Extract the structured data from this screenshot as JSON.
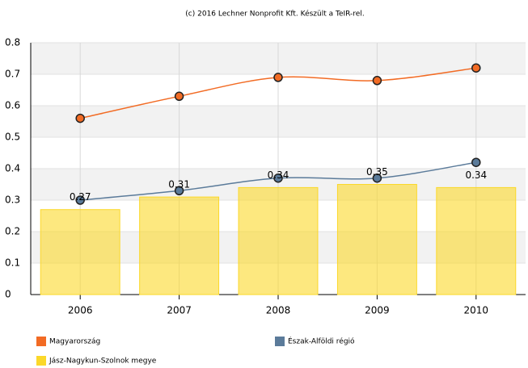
{
  "chart_data": {
    "type": "bar",
    "title": "(c) 2016 Lechner Nonprofit Kft. Készült a TeIR-rel.",
    "categories": [
      "2006",
      "2007",
      "2008",
      "2009",
      "2010"
    ],
    "series": [
      {
        "name": "Magyarország",
        "type": "line",
        "color": "#f26b24",
        "values": [
          0.56,
          0.63,
          0.69,
          0.68,
          0.72
        ]
      },
      {
        "name": "Észak-Alföldi régió",
        "type": "line",
        "color": "#5b7b9a",
        "values": [
          0.3,
          0.33,
          0.37,
          0.37,
          0.42
        ]
      },
      {
        "name": "Jász-Nagykun-Szolnok megye",
        "type": "bar",
        "color": "#fbd82a",
        "values": [
          0.27,
          0.31,
          0.34,
          0.35,
          0.34
        ]
      }
    ],
    "ylim": [
      0,
      0.8
    ],
    "yticks": [
      0,
      0.1,
      0.2,
      0.3,
      0.4,
      0.5,
      0.6,
      0.7,
      0.8
    ],
    "grid": true
  }
}
